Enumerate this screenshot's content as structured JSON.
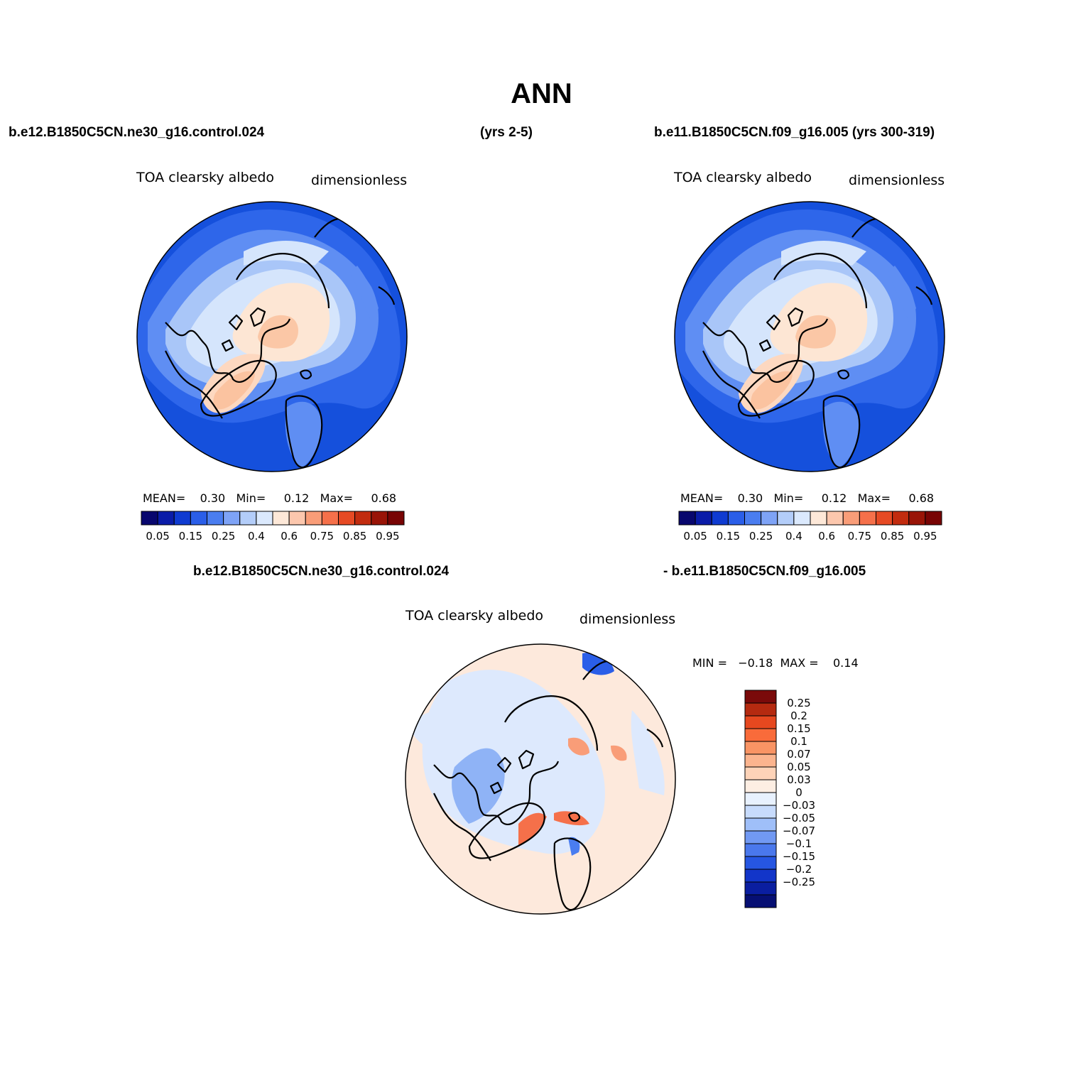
{
  "title": "ANN",
  "top_left_case": "b.e12.B1850C5CN.ne30_g16.control.024",
  "top_left_years": "(yrs 2-5)",
  "top_right_case": "b.e11.B1850C5CN.f09_g16.005 (yrs 300-319)",
  "bottom_case_a": "b.e12.B1850C5CN.ne30_g16.control.024",
  "bottom_case_b": "- b.e11.B1850C5CN.f09_g16.005",
  "panels": [
    {
      "variable": "TOA clearsky albedo",
      "units": "dimensionless",
      "stats": "MEAN=    0.30   Min=     0.12   Max=     0.68"
    },
    {
      "variable": "TOA clearsky albedo",
      "units": "dimensionless",
      "stats": "MEAN=    0.30   Min=     0.12   Max=     0.68"
    }
  ],
  "diff_panel": {
    "variable": "TOA clearsky albedo",
    "units": "dimensionless",
    "stats": "MIN =   −0.18  MAX =    0.14"
  },
  "colorbar_main": {
    "colors": [
      "#08076e",
      "#0a1ca8",
      "#0f3bd1",
      "#2a5ee8",
      "#4a7df0",
      "#7ea3f6",
      "#b3cdf9",
      "#dbe9fd",
      "#fde8d8",
      "#fcc7ad",
      "#f99d78",
      "#f5704a",
      "#e64a24",
      "#c22c0f",
      "#991407",
      "#780404"
    ],
    "tick_labels": [
      "0.05",
      "0.15",
      "0.25",
      "0.4",
      "0.6",
      "0.75",
      "0.85",
      "0.95"
    ]
  },
  "colorbar_diff": {
    "colors_top_to_bottom": [
      "#7a0a0a",
      "#b52a10",
      "#e6481f",
      "#f96b3a",
      "#f99464",
      "#fbb48e",
      "#fdd3b8",
      "#fdeee3",
      "#e8f1fe",
      "#c7dbfc",
      "#9fbff9",
      "#7199f3",
      "#4a78ec",
      "#2656e2",
      "#1235c9",
      "#0a1ea0",
      "#060f73"
    ],
    "tick_labels": [
      "0.25",
      "0.2",
      "0.15",
      "0.1",
      "0.07",
      "0.05",
      "0.03",
      "0",
      "−0.03",
      "−0.05",
      "−0.07",
      "−0.1",
      "−0.15",
      "−0.2",
      "−0.25"
    ]
  }
}
